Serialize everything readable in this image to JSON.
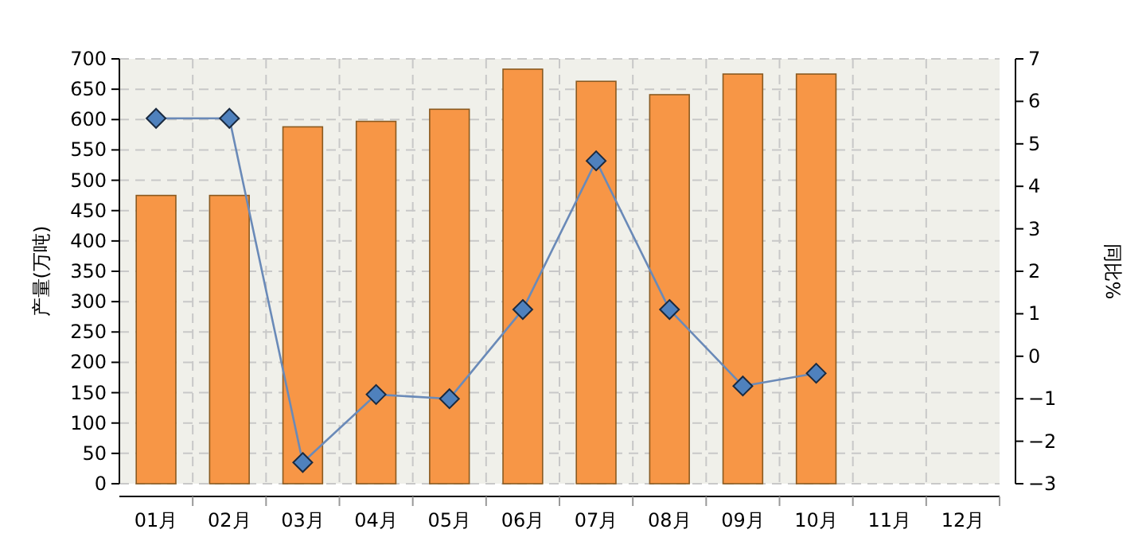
{
  "chart_data": {
    "type": "bar",
    "categories": [
      "01月",
      "02月",
      "03月",
      "04月",
      "05月",
      "06月",
      "07月",
      "08月",
      "09月",
      "10月",
      "11月",
      "12月"
    ],
    "ylabel": "产量(万吨)",
    "y2label": "同比%",
    "ylim": [
      0,
      700
    ],
    "yticks": [
      0,
      50,
      100,
      150,
      200,
      250,
      300,
      350,
      400,
      450,
      500,
      550,
      600,
      650,
      700
    ],
    "y2lim": [
      -3,
      7
    ],
    "y2ticks": [
      -3,
      -2,
      -1,
      0,
      1,
      2,
      3,
      4,
      5,
      6,
      7
    ],
    "grid": true,
    "series": [
      {
        "color": "#f79646",
        "values": [
          475,
          475,
          588,
          597,
          617,
          683,
          663,
          641,
          675,
          675,
          null,
          null
        ]
      },
      {
        "type": "line",
        "axis": "y2",
        "color": "#6a8ab8",
        "marker": "diamond",
        "values": [
          5.6,
          5.6,
          -2.5,
          -0.9,
          -1.0,
          1.1,
          4.6,
          1.1,
          -0.7,
          -0.4,
          null,
          null
        ]
      }
    ]
  }
}
